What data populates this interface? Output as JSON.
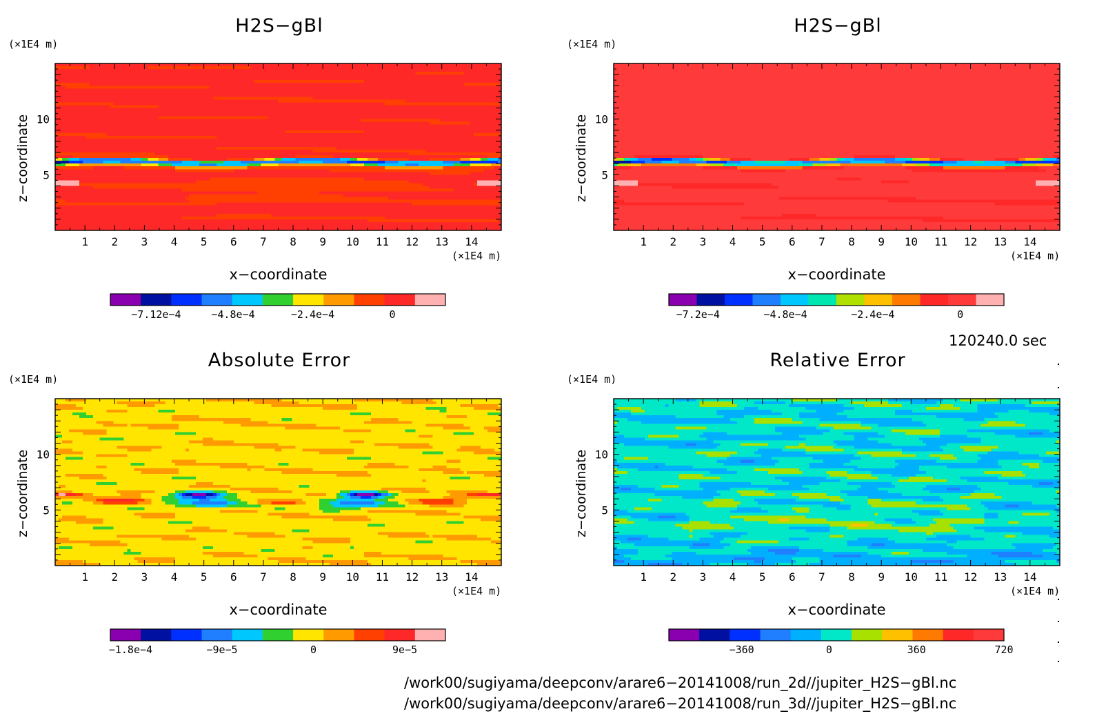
{
  "chart_data": [
    {
      "type": "heatmap",
      "title": "H2S−gBl",
      "xlabel": "x−coordinate",
      "ylabel": "z−coordinate",
      "xunit": "(×1E4 m)",
      "yunit": "(×1E4 m)",
      "xticks": [
        1,
        2,
        3,
        4,
        5,
        6,
        7,
        8,
        9,
        10,
        11,
        12,
        13,
        14
      ],
      "yticks": [
        5,
        10
      ],
      "xlim": [
        0,
        15
      ],
      "ylim": [
        0,
        15
      ],
      "field": "h2s_2d",
      "colorbar": {
        "colors": [
          "#8a00b0",
          "#0010a0",
          "#0030ff",
          "#1f7fff",
          "#00c8ff",
          "#30d030",
          "#ffe500",
          "#ff9a00",
          "#ff4000",
          "#ff2828",
          "#ffb0b0"
        ],
        "ticks": [
          {
            "v": -0.000712,
            "label": "−7.12e−4"
          },
          {
            "v": -0.00048,
            "label": "−4.8e−4"
          },
          {
            "v": -0.00024,
            "label": "−2.4e−4"
          },
          {
            "v": 0,
            "label": "0"
          }
        ],
        "min": -0.00085,
        "max": 0.00016
      }
    },
    {
      "type": "heatmap",
      "title": "H2S−gBl",
      "xlabel": "x−coordinate",
      "ylabel": "z−coordinate",
      "xunit": "(×1E4 m)",
      "yunit": "(×1E4 m)",
      "xticks": [
        1,
        2,
        3,
        4,
        5,
        6,
        7,
        8,
        9,
        10,
        11,
        12,
        13,
        14
      ],
      "yticks": [
        5,
        10
      ],
      "xlim": [
        0,
        15
      ],
      "ylim": [
        0,
        15
      ],
      "field": "h2s_3d",
      "colorbar": {
        "colors": [
          "#8a00b0",
          "#0010a0",
          "#0030ff",
          "#1f7fff",
          "#00c8ff",
          "#00e8b0",
          "#b0e000",
          "#ffc000",
          "#ff7a00",
          "#ff2828",
          "#ff3a3a",
          "#ffb0b0"
        ],
        "ticks": [
          {
            "v": -0.00072,
            "label": "−7.2e−4"
          },
          {
            "v": -0.00048,
            "label": "−4.8e−4"
          },
          {
            "v": -0.00024,
            "label": "−2.4e−4"
          },
          {
            "v": 0,
            "label": "0"
          }
        ],
        "min": -0.0008,
        "max": 0.00012
      }
    },
    {
      "type": "heatmap",
      "title": "Absolute Error",
      "xlabel": "x−coordinate",
      "ylabel": "z−coordinate",
      "xunit": "(×1E4 m)",
      "yunit": "(×1E4 m)",
      "xticks": [
        1,
        2,
        3,
        4,
        5,
        6,
        7,
        8,
        9,
        10,
        11,
        12,
        13,
        14
      ],
      "yticks": [
        5,
        10
      ],
      "xlim": [
        0,
        15
      ],
      "ylim": [
        0,
        15
      ],
      "field": "abs_err",
      "colorbar": {
        "colors": [
          "#8a00b0",
          "#0010a0",
          "#0030ff",
          "#1f7fff",
          "#00c8ff",
          "#30d030",
          "#ffe500",
          "#ff9a00",
          "#ff4000",
          "#ff2828",
          "#ffb0b0"
        ],
        "ticks": [
          {
            "v": -0.00018,
            "label": "−1.8e−4"
          },
          {
            "v": -9e-05,
            "label": "−9e−5"
          },
          {
            "v": 0,
            "label": "0"
          },
          {
            "v": 9e-05,
            "label": "9e−5"
          }
        ],
        "min": -0.0002,
        "max": 0.00013
      }
    },
    {
      "type": "heatmap",
      "title": "Relative Error",
      "xlabel": "x−coordinate",
      "ylabel": "z−coordinate",
      "xunit": "(×1E4 m)",
      "yunit": "(×1E4 m)",
      "xticks": [
        1,
        2,
        3,
        4,
        5,
        6,
        7,
        8,
        9,
        10,
        11,
        12,
        13,
        14
      ],
      "yticks": [
        5,
        10
      ],
      "xlim": [
        0,
        15
      ],
      "ylim": [
        0,
        15
      ],
      "field": "rel_err",
      "colorbar": {
        "colors": [
          "#8a00b0",
          "#0010a0",
          "#0030ff",
          "#1f7fff",
          "#00b0ff",
          "#00e8c8",
          "#a8e000",
          "#ffc000",
          "#ff7a00",
          "#ff2828",
          "#ff3a3a"
        ],
        "ticks": [
          {
            "v": -360,
            "label": "−360"
          },
          {
            "v": 0,
            "label": "0"
          },
          {
            "v": 360,
            "label": "360"
          },
          {
            "v": 720,
            "label": "720"
          }
        ],
        "min": -660,
        "max": 720
      }
    }
  ],
  "time_label": "120240.0 sec",
  "footer": [
    "/work00/sugiyama/deepconv/arare6−20141008/run_2d//jupiter_H2S−gBl.nc",
    "/work00/sugiyama/deepconv/arare6−20141008/run_3d//jupiter_H2S−gBl.nc"
  ]
}
